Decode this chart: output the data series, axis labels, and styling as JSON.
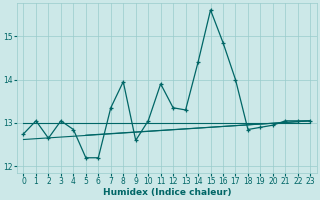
{
  "xlabel": "Humidex (Indice chaleur)",
  "background_color": "#cce8e8",
  "grid_color": "#99cccc",
  "line_color": "#006666",
  "xlim": [
    -0.5,
    23.5
  ],
  "ylim": [
    11.85,
    15.75
  ],
  "yticks": [
    12,
    13,
    14,
    15
  ],
  "xticks": [
    0,
    1,
    2,
    3,
    4,
    5,
    6,
    7,
    8,
    9,
    10,
    11,
    12,
    13,
    14,
    15,
    16,
    17,
    18,
    19,
    20,
    21,
    22,
    23
  ],
  "main_series_x": [
    0,
    1,
    2,
    3,
    4,
    5,
    6,
    7,
    8,
    9,
    10,
    11,
    12,
    13,
    14,
    15,
    16,
    17,
    18,
    19,
    20,
    21,
    22,
    23
  ],
  "main_series_y": [
    12.75,
    13.05,
    12.65,
    13.05,
    12.85,
    12.2,
    12.2,
    13.35,
    13.95,
    12.6,
    13.05,
    13.9,
    13.35,
    13.3,
    14.4,
    15.6,
    14.85,
    14.0,
    12.85,
    12.9,
    12.95,
    13.05,
    13.05,
    13.05
  ],
  "flat_line1_x": [
    0,
    23
  ],
  "flat_line1_y": [
    13.0,
    13.0
  ],
  "rise_line1_x": [
    0,
    23
  ],
  "rise_line1_y": [
    12.62,
    13.05
  ],
  "rise_line2_x": [
    5,
    23
  ],
  "rise_line2_y": [
    12.72,
    13.05
  ]
}
